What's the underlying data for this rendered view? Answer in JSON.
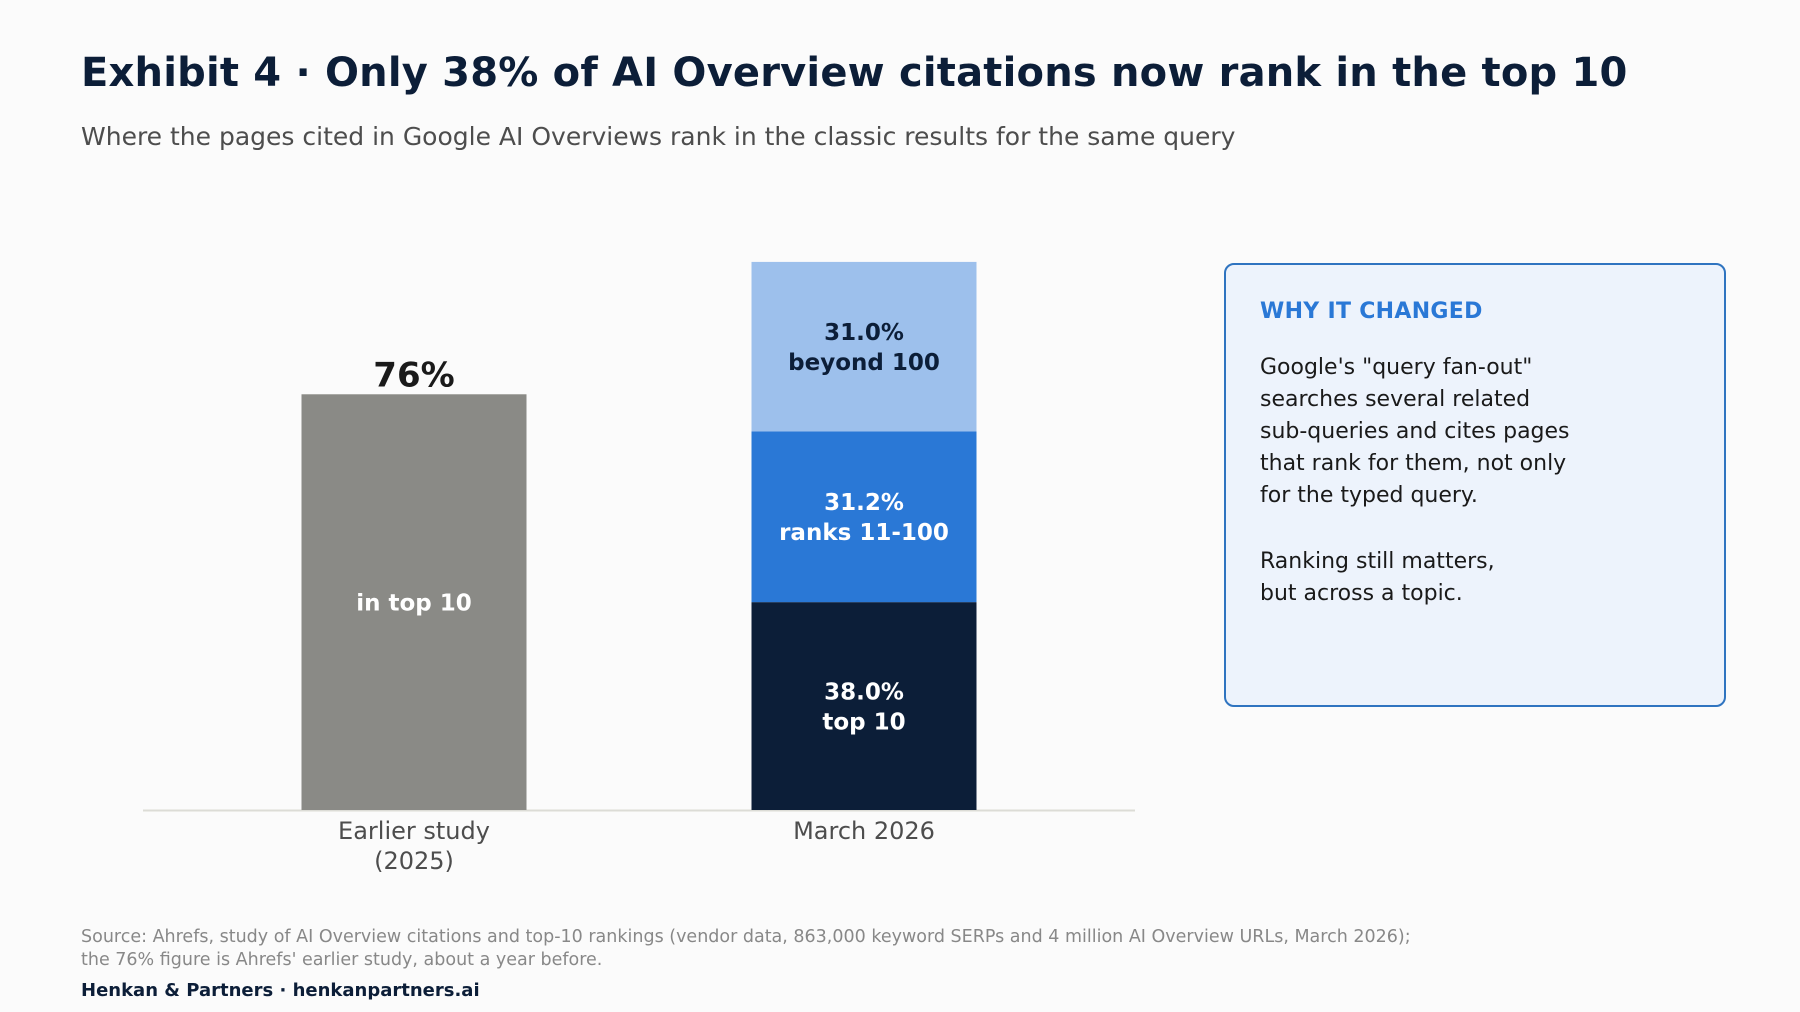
{
  "header": {
    "title": "Exhibit 4 · Only 38% of AI Overview citations now rank in the top 10",
    "subtitle": "Where the pages cited in Google AI Overviews rank in the classic results for the same query"
  },
  "chart_data": {
    "type": "bar",
    "stacked": true,
    "categories": [
      "Earlier study\n(2025)",
      "March 2026"
    ],
    "ylim": [
      0,
      100
    ],
    "grid": false,
    "legend": "none",
    "xlabel": "",
    "ylabel": "",
    "series": [
      {
        "values": [
          76,
          38.0
        ],
        "colors": [
          "#8a8a86",
          "#0c1e38"
        ],
        "labels": [
          "in top 10",
          "38.0%\ntop 10"
        ],
        "label_colors": [
          "#ffffff",
          "#ffffff"
        ]
      },
      {
        "values": [
          0,
          31.2
        ],
        "colors": [
          "#2a78d6",
          "#2a78d6"
        ],
        "labels": [
          "",
          "31.2%\nranks 11-100"
        ],
        "label_colors": [
          "#ffffff",
          "#ffffff"
        ]
      },
      {
        "values": [
          0,
          31.0
        ],
        "colors": [
          "#9dc0ec",
          "#9dc0ec"
        ],
        "labels": [
          "",
          "31.0%\nbeyond 100"
        ],
        "label_colors": [
          "#0c1e38",
          "#0c1e38"
        ]
      }
    ],
    "totals_labels": [
      "76%",
      ""
    ]
  },
  "callout": {
    "heading": "WHY IT CHANGED",
    "paragraphs": [
      "Google's \"query fan-out\" searches several related sub-queries and cites pages that rank for them, not only for the typed query.",
      "Ranking still matters, but across a topic."
    ],
    "colors": {
      "border": "#2f74c0",
      "background": "#edf3fc",
      "heading": "#2a78d6"
    }
  },
  "footer": {
    "source_lines": [
      "Source: Ahrefs, study of AI Overview citations and top-10 rankings (vendor data, 863,000 keyword SERPs and 4 million AI Overview URLs, March 2026);",
      "the 76% figure is Ahrefs' earlier study, about a year before."
    ],
    "brand": "Henkan & Partners · henkanpartners.ai"
  }
}
